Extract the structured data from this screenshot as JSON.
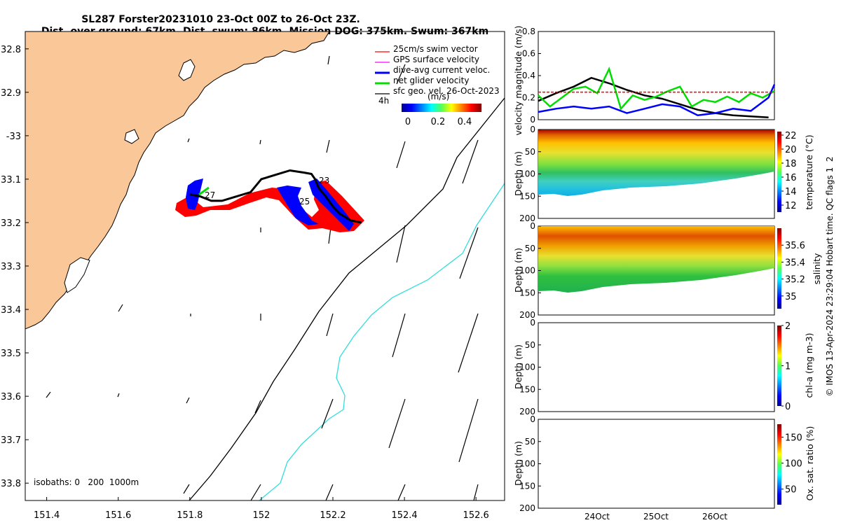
{
  "title": {
    "line1": "SL287 Forster20231010 23-Oct 00Z to 26-Oct 23Z.",
    "line2": "Dist. over ground: 67km. Dist. swum: 86km. Mission DOG: 375km. Swum: 367km"
  },
  "copyright": "© IMOS 13-Apr-2024 23:29:04 Hobart time. QC flags 1  2",
  "colors": {
    "land": "#FAC898",
    "swim": "#FF0000",
    "gps": "#FF00FF",
    "current": "#0000FF",
    "glider": "#00DD00",
    "geo": "#000000",
    "isobath_200": "#000000",
    "isobath_1000": "#33DDDD"
  },
  "chart_data": [
    {
      "type": "map",
      "lon_ticks": [
        "151.4",
        "151.6",
        "151.8",
        "152",
        "152.2",
        "152.4",
        "152.6"
      ],
      "lat_ticks": [
        "32.8",
        "32.9",
        "-33",
        "33.1",
        "33.2",
        "33.3",
        "33.4",
        "33.5",
        "33.6",
        "33.7",
        "33.8"
      ],
      "xlim": [
        151.34,
        152.68
      ],
      "ylim": [
        -33.84,
        -32.76
      ],
      "legend": {
        "placement": "top-right",
        "entries": [
          {
            "label": "25cm/s swim vector",
            "color_key": "swim"
          },
          {
            "label": "GPS surface velocity",
            "color_key": "gps"
          },
          {
            "label": "dive-avg current veloc.",
            "color_key": "current"
          },
          {
            "label": "net glider velocity",
            "color_key": "glider"
          },
          {
            "label": "sfc geo. vel. 26-Oct-2023",
            "color_key": "geo"
          }
        ]
      },
      "colorbar": {
        "label": "(m/s)",
        "ticks": [
          "0",
          "0.2",
          "0.4"
        ],
        "range": [
          0,
          0.5
        ]
      },
      "annotations": {
        "time_step": "4h",
        "isobaths": "isobaths: 0   200  1000m"
      },
      "track_labels": [
        "23",
        "25",
        "27"
      ],
      "track": {
        "lon": [
          152.28,
          152.25,
          152.22,
          152.2,
          152.18,
          152.16,
          152.15,
          152.14,
          152.12,
          152.08,
          152.04,
          152.0,
          151.97,
          151.93,
          151.89,
          151.86,
          151.83,
          151.8
        ],
        "lat": [
          -33.2,
          -33.195,
          -33.18,
          -33.163,
          -33.14,
          -33.12,
          -33.1,
          -33.088,
          -33.085,
          -33.08,
          -33.09,
          -33.1,
          -33.13,
          -33.14,
          -33.15,
          -33.15,
          -33.14,
          -33.135
        ]
      }
    },
    {
      "type": "line",
      "ylabel": "velocity magnitude (m/s)",
      "ylim": [
        0,
        0.8
      ],
      "yticks": [
        "0",
        "0.2",
        "0.4",
        "0.6",
        "0.8"
      ],
      "xlabels": [
        "24Oct",
        "25Oct",
        "26Oct"
      ],
      "xlim_days": [
        23.0,
        27.0
      ],
      "series": [
        {
          "color_key": "geo",
          "x": [
            23.0,
            23.3,
            23.6,
            23.9,
            24.2,
            24.5,
            24.8,
            25.1,
            25.4,
            25.7,
            26.0,
            26.3,
            26.6,
            26.9
          ],
          "values": [
            0.17,
            0.24,
            0.3,
            0.38,
            0.33,
            0.27,
            0.22,
            0.19,
            0.14,
            0.09,
            0.06,
            0.04,
            0.03,
            0.02
          ]
        },
        {
          "color_key": "glider",
          "x": [
            23.0,
            23.2,
            23.4,
            23.6,
            23.8,
            24.0,
            24.2,
            24.4,
            24.6,
            24.8,
            25.0,
            25.2,
            25.4,
            25.6,
            25.8,
            26.0,
            26.2,
            26.4,
            26.6,
            26.8,
            27.0
          ],
          "values": [
            0.22,
            0.12,
            0.2,
            0.28,
            0.3,
            0.24,
            0.46,
            0.1,
            0.22,
            0.18,
            0.21,
            0.26,
            0.3,
            0.12,
            0.18,
            0.16,
            0.21,
            0.16,
            0.24,
            0.2,
            0.26
          ]
        },
        {
          "color_key": "current",
          "x": [
            23.0,
            23.3,
            23.6,
            23.9,
            24.2,
            24.5,
            24.8,
            25.1,
            25.4,
            25.7,
            26.0,
            26.3,
            26.6,
            26.9,
            27.0
          ],
          "values": [
            0.07,
            0.1,
            0.12,
            0.1,
            0.12,
            0.06,
            0.1,
            0.14,
            0.12,
            0.04,
            0.06,
            0.1,
            0.08,
            0.2,
            0.32
          ]
        },
        {
          "color_key": "swim",
          "x": [
            23.0,
            27.0
          ],
          "values": [
            0.25,
            0.25
          ]
        }
      ]
    },
    {
      "type": "heatmap",
      "ylabel": "Depth (m)",
      "cbar_label": "temperature (°C)",
      "cbar_range": [
        11,
        22.5
      ],
      "cbar_ticks": [
        "22",
        "20",
        "18",
        "16",
        "14",
        "12"
      ],
      "yticks": [
        "0",
        "50",
        "100",
        "150",
        "200"
      ],
      "ylim": [
        0,
        200
      ]
    },
    {
      "type": "heatmap",
      "ylabel": "Depth (m)",
      "cbar_label": "salinity",
      "cbar_range": [
        34.85,
        35.8
      ],
      "cbar_ticks": [
        "35.6",
        "35.4",
        "35.2",
        "35"
      ],
      "yticks": [
        "0",
        "50",
        "100",
        "150",
        "200"
      ],
      "ylim": [
        0,
        200
      ]
    },
    {
      "type": "heatmap",
      "ylabel": "Depth (m)",
      "cbar_label": "chl-a (mg m-3)",
      "cbar_range": [
        0,
        2
      ],
      "cbar_ticks": [
        "2",
        "1",
        "0"
      ],
      "yticks": [
        "0",
        "50",
        "100",
        "150",
        "200"
      ],
      "ylim": [
        0,
        200
      ]
    },
    {
      "type": "heatmap",
      "ylabel": "Depth (m)",
      "cbar_label": "Ox. sat. ratio (%)",
      "cbar_range": [
        20,
        175
      ],
      "cbar_ticks": [
        "150",
        "100",
        "50"
      ],
      "yticks": [
        "0",
        "50",
        "100",
        "150",
        "200"
      ],
      "ylim": [
        0,
        200
      ]
    }
  ]
}
